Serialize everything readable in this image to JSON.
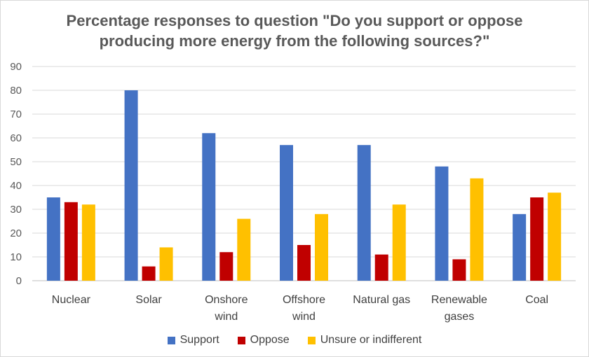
{
  "chart_data": {
    "type": "bar",
    "title_lines": [
      "Percentage responses to question \"Do you support or oppose",
      "producing more energy from the following sources?\""
    ],
    "categories": [
      [
        "Nuclear"
      ],
      [
        "Solar"
      ],
      [
        "Onshore",
        "wind"
      ],
      [
        "Offshore",
        "wind"
      ],
      [
        "Natural gas"
      ],
      [
        "Renewable",
        "gases"
      ],
      [
        "Coal"
      ]
    ],
    "series": [
      {
        "name": "Support",
        "color": "#4472c4",
        "values": [
          35,
          80,
          62,
          57,
          57,
          48,
          28
        ]
      },
      {
        "name": "Oppose",
        "color": "#c00000",
        "values": [
          33,
          6,
          12,
          15,
          11,
          9,
          35
        ]
      },
      {
        "name": "Unsure or indifferent",
        "color": "#ffc000",
        "values": [
          32,
          14,
          26,
          28,
          32,
          43,
          37
        ]
      }
    ],
    "ylim": [
      0,
      90
    ],
    "yticks": [
      0,
      10,
      20,
      30,
      40,
      50,
      60,
      70,
      80,
      90
    ],
    "grid": true,
    "legend_position": "bottom"
  }
}
